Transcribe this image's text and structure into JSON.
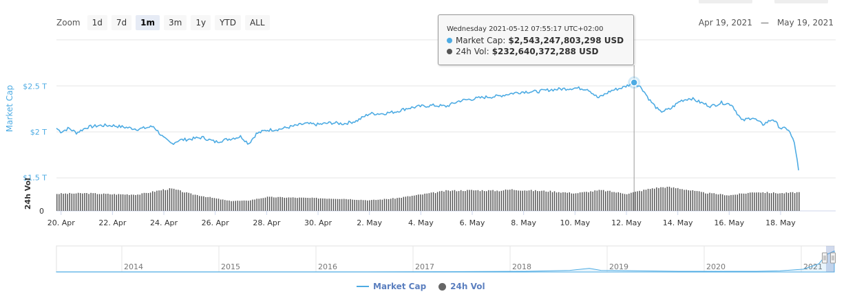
{
  "zoom": {
    "label": "Zoom",
    "buttons": [
      "1d",
      "7d",
      "1m",
      "3m",
      "1y",
      "YTD",
      "ALL"
    ],
    "active": "1m"
  },
  "range": {
    "from": "Apr 19, 2021",
    "separator": "—",
    "to": "May 19, 2021"
  },
  "tooltip": {
    "date": "Wednesday 2021-05-12 07:55:17 UTC+02:00",
    "market_cap_label": "Market Cap:",
    "market_cap_value": "$2,543,247,803,298 USD",
    "volume_label": "24h Vol:",
    "volume_value": "$232,640,372,288 USD"
  },
  "legend": {
    "market_cap": "Market Cap",
    "volume": "24h Vol"
  },
  "colors": {
    "market_cap": "#4dabe3",
    "volume": "#555555",
    "axis_label": "#4dabe3",
    "grid": "#e6e6e6"
  },
  "chart_data": {
    "type": "line",
    "y_axis": {
      "label": "Market Cap",
      "ticks": [
        "$1.5 T",
        "$2 T",
        "$2.5 T"
      ],
      "tick_values": [
        1.5,
        2.0,
        2.5
      ],
      "unit": "T USD"
    },
    "volume_axis": {
      "label": "24h Vol",
      "ticks": [
        "0"
      ]
    },
    "x_ticks": [
      "20. Apr",
      "22. Apr",
      "24. Apr",
      "26. Apr",
      "28. Apr",
      "30. Apr",
      "2. May",
      "4. May",
      "6. May",
      "8. May",
      "10. May",
      "12. May",
      "14. May",
      "16. May",
      "18. May"
    ],
    "x_tick_days": [
      1,
      3,
      5,
      7,
      9,
      11,
      13,
      15,
      17,
      19,
      21,
      23,
      25,
      27,
      29
    ],
    "x_start_date": "2021-04-19",
    "series": [
      {
        "name": "Market Cap",
        "unit": "T USD",
        "points": [
          [
            0.82,
            2.04
          ],
          [
            1.0,
            2.0
          ],
          [
            1.3,
            2.04
          ],
          [
            1.6,
            1.99
          ],
          [
            2.0,
            2.05
          ],
          [
            2.5,
            2.07
          ],
          [
            3.0,
            2.07
          ],
          [
            3.5,
            2.05
          ],
          [
            4.0,
            2.03
          ],
          [
            4.6,
            2.06
          ],
          [
            5.0,
            1.93
          ],
          [
            5.3,
            1.87
          ],
          [
            5.6,
            1.91
          ],
          [
            6.0,
            1.92
          ],
          [
            6.5,
            1.94
          ],
          [
            7.0,
            1.89
          ],
          [
            7.5,
            1.92
          ],
          [
            8.0,
            1.95
          ],
          [
            8.3,
            1.87
          ],
          [
            8.6,
            1.98
          ],
          [
            9.0,
            2.02
          ],
          [
            9.5,
            2.03
          ],
          [
            10.0,
            2.06
          ],
          [
            10.5,
            2.09
          ],
          [
            11.0,
            2.08
          ],
          [
            11.5,
            2.1
          ],
          [
            12.0,
            2.09
          ],
          [
            12.5,
            2.12
          ],
          [
            13.0,
            2.2
          ],
          [
            13.5,
            2.2
          ],
          [
            14.0,
            2.22
          ],
          [
            14.5,
            2.26
          ],
          [
            15.0,
            2.28
          ],
          [
            15.5,
            2.29
          ],
          [
            16.0,
            2.28
          ],
          [
            16.5,
            2.34
          ],
          [
            17.0,
            2.36
          ],
          [
            17.5,
            2.38
          ],
          [
            18.0,
            2.39
          ],
          [
            18.5,
            2.42
          ],
          [
            19.0,
            2.44
          ],
          [
            19.5,
            2.44
          ],
          [
            20.0,
            2.46
          ],
          [
            20.5,
            2.47
          ],
          [
            21.0,
            2.48
          ],
          [
            21.5,
            2.47
          ],
          [
            21.9,
            2.37
          ],
          [
            22.4,
            2.45
          ],
          [
            22.9,
            2.49
          ],
          [
            23.3,
            2.54
          ],
          [
            23.6,
            2.48
          ],
          [
            23.9,
            2.35
          ],
          [
            24.3,
            2.22
          ],
          [
            24.7,
            2.25
          ],
          [
            25.1,
            2.34
          ],
          [
            25.5,
            2.37
          ],
          [
            25.9,
            2.32
          ],
          [
            26.3,
            2.28
          ],
          [
            26.7,
            2.32
          ],
          [
            27.1,
            2.3
          ],
          [
            27.5,
            2.12
          ],
          [
            27.9,
            2.16
          ],
          [
            28.3,
            2.08
          ],
          [
            28.7,
            2.14
          ],
          [
            29.0,
            2.04
          ],
          [
            29.3,
            2.03
          ],
          [
            29.55,
            1.87
          ],
          [
            29.7,
            1.58
          ]
        ]
      },
      {
        "name": "24h Vol",
        "profile": [
          [
            0.82,
            0.68
          ],
          [
            2.0,
            0.7
          ],
          [
            3.0,
            0.66
          ],
          [
            4.0,
            0.65
          ],
          [
            5.0,
            0.85
          ],
          [
            5.3,
            0.88
          ],
          [
            6.0,
            0.68
          ],
          [
            7.5,
            0.4
          ],
          [
            8.2,
            0.4
          ],
          [
            9.0,
            0.55
          ],
          [
            12.0,
            0.48
          ],
          [
            13.0,
            0.42
          ],
          [
            14.0,
            0.5
          ],
          [
            15.0,
            0.65
          ],
          [
            16.0,
            0.8
          ],
          [
            17.0,
            0.82
          ],
          [
            18.0,
            0.8
          ],
          [
            18.5,
            0.85
          ],
          [
            19.0,
            0.82
          ],
          [
            20.0,
            0.78
          ],
          [
            21.0,
            0.7
          ],
          [
            22.0,
            0.82
          ],
          [
            23.0,
            0.68
          ],
          [
            24.0,
            0.9
          ],
          [
            24.5,
            0.95
          ],
          [
            25.0,
            0.9
          ],
          [
            26.0,
            0.72
          ],
          [
            27.0,
            0.62
          ],
          [
            28.0,
            0.75
          ],
          [
            29.0,
            0.7
          ],
          [
            29.7,
            0.74
          ]
        ]
      }
    ],
    "highlight": {
      "day": 23.3,
      "value": 2.54
    }
  },
  "navigator": {
    "years": [
      "2014",
      "2015",
      "2016",
      "2017",
      "2018",
      "2019",
      "2020",
      "2021"
    ],
    "profile": [
      [
        0.0,
        0.01
      ],
      [
        0.4,
        0.01
      ],
      [
        0.5,
        0.015
      ],
      [
        0.6,
        0.03
      ],
      [
        0.66,
        0.07
      ],
      [
        0.685,
        0.16
      ],
      [
        0.7,
        0.07
      ],
      [
        0.75,
        0.05
      ],
      [
        0.8,
        0.03
      ],
      [
        0.9,
        0.03
      ],
      [
        0.93,
        0.05
      ],
      [
        0.96,
        0.12
      ],
      [
        0.98,
        0.35
      ],
      [
        0.99,
        0.75
      ],
      [
        1.0,
        0.9
      ]
    ]
  }
}
